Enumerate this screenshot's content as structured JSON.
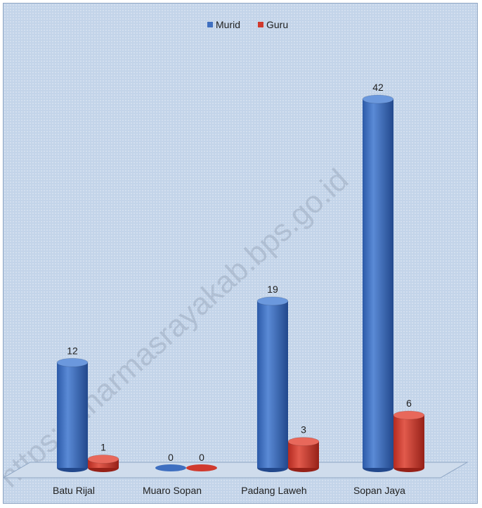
{
  "chart_data": {
    "type": "bar",
    "style": "3d-cylinder",
    "categories": [
      "Batu Rijal",
      "Muaro Sopan",
      "Padang Laweh",
      "Sopan Jaya"
    ],
    "series": [
      {
        "name": "Murid",
        "values": [
          12,
          0,
          19,
          42
        ],
        "color": "#3f6fc0"
      },
      {
        "name": "Guru",
        "values": [
          1,
          0,
          3,
          6
        ],
        "color": "#d03a2e"
      }
    ],
    "ylim": [
      0,
      42
    ],
    "legend_position": "top-center",
    "grid": false
  },
  "watermark": "https://dharmasrayakab.bps.go.id"
}
